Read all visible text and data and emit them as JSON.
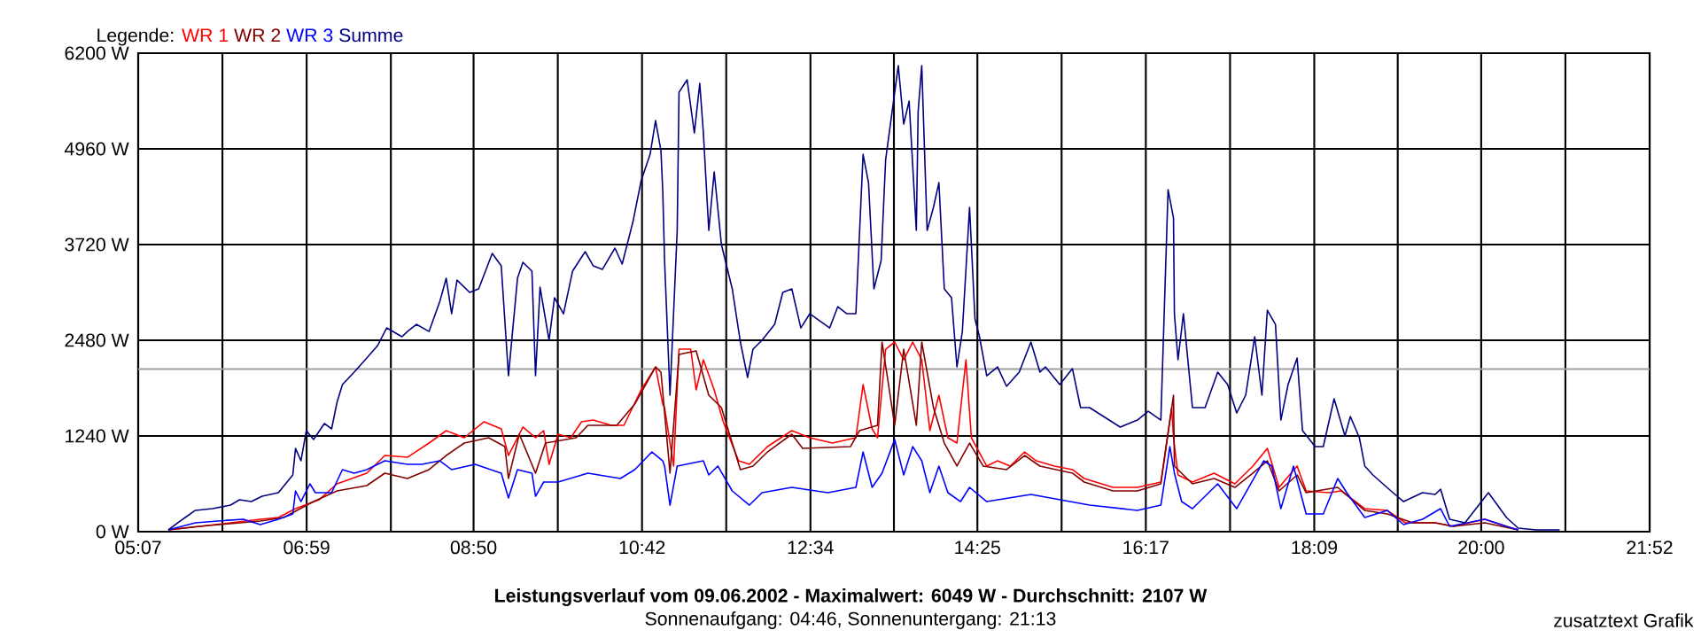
{
  "chart_data": {
    "type": "line",
    "title": "Leistungsverlauf vom 09.06.2002 - Maximalwert: 6049 W - Durchschnitt: 2107 W",
    "subtitle": "Sonnenaufgang: 04:46, Sonnenuntergang: 21:13",
    "annotations": [
      "zusatztext Grafik"
    ],
    "legend_title": "Legende:",
    "legend": "top left",
    "grid": true,
    "xlim": [
      5.1167,
      21.8667
    ],
    "ylim": [
      0,
      6200
    ],
    "xticks": [
      {
        "value": 5.1167,
        "label": "05:07"
      },
      {
        "value": 6.05,
        "label": null
      },
      {
        "value": 6.9833,
        "label": "06:59"
      },
      {
        "value": 7.9167,
        "label": null
      },
      {
        "value": 8.8333,
        "label": "08:50"
      },
      {
        "value": 9.7667,
        "label": null
      },
      {
        "value": 10.7,
        "label": "10:42"
      },
      {
        "value": 11.6333,
        "label": null
      },
      {
        "value": 12.5667,
        "label": "12:34"
      },
      {
        "value": 13.4917,
        "label": null
      },
      {
        "value": 14.4167,
        "label": "14:25"
      },
      {
        "value": 15.35,
        "label": null
      },
      {
        "value": 16.2833,
        "label": "16:17"
      },
      {
        "value": 17.2167,
        "label": null
      },
      {
        "value": 18.15,
        "label": "18:09"
      },
      {
        "value": 19.075,
        "label": null
      },
      {
        "value": 20.0,
        "label": "20:00"
      },
      {
        "value": 20.9333,
        "label": null
      },
      {
        "value": 21.8667,
        "label": "21:52"
      }
    ],
    "yticks": [
      {
        "value": 0,
        "label": "0 W"
      },
      {
        "value": 1240,
        "label": "1240 W"
      },
      {
        "value": 2480,
        "label": "2480 W"
      },
      {
        "value": 3720,
        "label": "3720 W"
      },
      {
        "value": 4960,
        "label": "4960 W"
      },
      {
        "value": 6200,
        "label": "6200 W"
      }
    ],
    "ref_lines": [
      {
        "axis": "y",
        "value": 2107,
        "color": "#a0a0a0"
      }
    ],
    "series": [
      {
        "name": "WR 1",
        "color": "#ff0000",
        "x": [
          5.45,
          5.8,
          6.14,
          6.47,
          6.67,
          6.86,
          7.12,
          7.32,
          7.65,
          7.85,
          8.1,
          8.34,
          8.53,
          8.73,
          8.95,
          9.14,
          9.22,
          9.38,
          9.52,
          9.61,
          9.67,
          9.77,
          9.91,
          10.03,
          10.16,
          10.36,
          10.5,
          10.69,
          10.85,
          10.93,
          10.95,
          11.05,
          11.11,
          11.24,
          11.3,
          11.38,
          11.5,
          11.6,
          11.77,
          11.89,
          12.09,
          12.36,
          12.56,
          12.81,
          13.07,
          13.15,
          13.25,
          13.31,
          13.4,
          13.5,
          13.6,
          13.7,
          13.8,
          13.89,
          13.99,
          14.09,
          14.19,
          14.29,
          14.35,
          14.52,
          14.64,
          14.78,
          14.94,
          15.07,
          15.27,
          15.47,
          15.6,
          15.92,
          16.19,
          16.45,
          16.57,
          16.59,
          16.64,
          16.8,
          17.04,
          17.27,
          17.47,
          17.63,
          17.76,
          17.96,
          18.06,
          18.31,
          18.45,
          18.71,
          18.96,
          19.16,
          19.49,
          19.69,
          20.04,
          20.28,
          20.41
        ],
        "values": [
          23,
          69,
          115,
          161,
          184,
          298,
          413,
          620,
          758,
          987,
          964,
          1148,
          1309,
          1217,
          1424,
          1332,
          987,
          1355,
          1217,
          1309,
          872,
          1263,
          1217,
          1424,
          1446,
          1378,
          1378,
          1837,
          2135,
          1653,
          1607,
          850,
          2365,
          2365,
          1837,
          2227,
          1837,
          1424,
          918,
          872,
          1102,
          1309,
          1217,
          1148,
          1217,
          1906,
          1332,
          1217,
          2365,
          2457,
          2227,
          2457,
          2227,
          1309,
          1768,
          1217,
          1148,
          2227,
          1217,
          850,
          918,
          850,
          1033,
          918,
          850,
          804,
          689,
          574,
          574,
          643,
          1607,
          1217,
          735,
          643,
          758,
          620,
          850,
          1079,
          574,
          850,
          528,
          505,
          528,
          298,
          275,
          115,
          115,
          69,
          161,
          69,
          23
        ]
      },
      {
        "name": "WR 2",
        "color": "#800000",
        "x": [
          5.45,
          5.8,
          6.47,
          6.73,
          7.06,
          7.32,
          7.65,
          7.85,
          8.1,
          8.34,
          8.53,
          8.73,
          9.0,
          9.18,
          9.22,
          9.34,
          9.52,
          9.63,
          9.97,
          10.1,
          10.42,
          10.62,
          10.85,
          10.91,
          11.01,
          11.11,
          11.3,
          11.44,
          11.58,
          11.79,
          11.93,
          12.09,
          12.36,
          12.48,
          13.01,
          13.11,
          13.31,
          13.36,
          13.5,
          13.6,
          13.74,
          13.8,
          13.93,
          14.05,
          14.19,
          14.33,
          14.48,
          14.74,
          14.94,
          15.11,
          15.47,
          15.6,
          15.92,
          16.19,
          16.45,
          16.59,
          16.6,
          16.8,
          17.04,
          17.27,
          17.47,
          17.63,
          17.76,
          17.96,
          18.06,
          18.41,
          18.71,
          18.96,
          19.24,
          19.49,
          19.69,
          20.04,
          20.41
        ],
        "values": [
          23,
          69,
          138,
          184,
          390,
          528,
          597,
          758,
          689,
          804,
          987,
          1148,
          1217,
          1102,
          689,
          1263,
          758,
          1148,
          1217,
          1378,
          1378,
          1653,
          2135,
          2066,
          758,
          2296,
          2342,
          1768,
          1607,
          804,
          850,
          1033,
          1263,
          1079,
          1102,
          1309,
          1378,
          2457,
          1378,
          2365,
          1378,
          2457,
          1607,
          1148,
          850,
          1148,
          850,
          804,
          987,
          850,
          758,
          643,
          528,
          528,
          620,
          1768,
          850,
          620,
          689,
          574,
          758,
          918,
          528,
          735,
          505,
          574,
          275,
          230,
          115,
          115,
          69,
          115,
          23
        ]
      },
      {
        "name": "WR 3",
        "color": "#0000ff",
        "x": [
          5.45,
          5.75,
          6.0,
          6.28,
          6.47,
          6.67,
          6.83,
          6.86,
          6.92,
          7.02,
          7.08,
          7.26,
          7.38,
          7.51,
          7.65,
          7.85,
          8.1,
          8.26,
          8.46,
          8.59,
          8.85,
          9.14,
          9.22,
          9.32,
          9.48,
          9.52,
          9.61,
          9.77,
          10.1,
          10.46,
          10.62,
          10.81,
          10.93,
          10.95,
          11.01,
          11.09,
          11.38,
          11.44,
          11.54,
          11.7,
          11.89,
          12.03,
          12.36,
          12.76,
          13.07,
          13.15,
          13.25,
          13.36,
          13.5,
          13.6,
          13.7,
          13.8,
          13.89,
          13.99,
          14.09,
          14.23,
          14.33,
          14.52,
          15.01,
          15.66,
          16.19,
          16.45,
          16.55,
          16.6,
          16.68,
          16.8,
          17.08,
          17.29,
          17.59,
          17.68,
          17.78,
          17.92,
          18.06,
          18.25,
          18.41,
          18.51,
          18.71,
          18.96,
          19.14,
          19.35,
          19.55,
          19.65,
          20.04,
          20.28,
          20.41
        ],
        "values": [
          23,
          115,
          138,
          161,
          92,
          161,
          230,
          528,
          390,
          620,
          505,
          505,
          804,
          758,
          804,
          918,
          872,
          872,
          918,
          804,
          872,
          758,
          436,
          804,
          758,
          459,
          643,
          643,
          758,
          689,
          804,
          1033,
          918,
          850,
          344,
          850,
          918,
          735,
          850,
          528,
          344,
          505,
          574,
          505,
          574,
          1033,
          574,
          758,
          1194,
          735,
          1102,
          918,
          505,
          850,
          505,
          390,
          574,
          390,
          482,
          344,
          276,
          344,
          1102,
          758,
          390,
          298,
          620,
          298,
          918,
          850,
          298,
          850,
          230,
          230,
          689,
          505,
          184,
          275,
          92,
          161,
          298,
          69,
          161,
          69,
          23
        ]
      },
      {
        "name": "Summe",
        "color": "#000080",
        "x": [
          5.45,
          5.61,
          5.75,
          5.94,
          6.14,
          6.24,
          6.37,
          6.49,
          6.67,
          6.83,
          6.86,
          6.92,
          6.98,
          7.06,
          7.18,
          7.26,
          7.32,
          7.38,
          7.51,
          7.65,
          7.77,
          7.87,
          8.04,
          8.1,
          8.2,
          8.34,
          8.46,
          8.53,
          8.59,
          8.65,
          8.79,
          8.89,
          9.04,
          9.14,
          9.22,
          9.32,
          9.38,
          9.48,
          9.52,
          9.57,
          9.67,
          9.73,
          9.83,
          9.93,
          10.07,
          10.16,
          10.26,
          10.4,
          10.48,
          10.6,
          10.69,
          10.79,
          10.85,
          10.91,
          10.93,
          10.95,
          11.01,
          11.09,
          11.11,
          11.2,
          11.28,
          11.34,
          11.38,
          11.44,
          11.5,
          11.58,
          11.7,
          11.79,
          11.87,
          11.93,
          12.03,
          12.17,
          12.26,
          12.36,
          12.46,
          12.56,
          12.78,
          12.87,
          12.97,
          13.07,
          13.15,
          13.21,
          13.27,
          13.35,
          13.4,
          13.54,
          13.6,
          13.66,
          13.74,
          13.76,
          13.8,
          13.86,
          13.93,
          13.99,
          14.05,
          14.13,
          14.19,
          14.25,
          14.33,
          14.39,
          14.44,
          14.52,
          14.64,
          14.74,
          14.88,
          15.01,
          15.11,
          15.17,
          15.33,
          15.47,
          15.56,
          15.66,
          16.0,
          16.19,
          16.31,
          16.45,
          16.53,
          16.59,
          16.6,
          16.64,
          16.7,
          16.8,
          16.94,
          17.08,
          17.19,
          17.29,
          17.39,
          17.49,
          17.57,
          17.63,
          17.72,
          17.78,
          17.86,
          17.96,
          18.02,
          18.16,
          18.25,
          18.37,
          18.49,
          18.55,
          18.65,
          18.71,
          18.8,
          19.0,
          19.14,
          19.35,
          19.49,
          19.55,
          19.65,
          19.82,
          20.08,
          20.28,
          20.41,
          20.61,
          20.87
        ],
        "values": [
          23,
          161,
          276,
          298,
          344,
          413,
          390,
          459,
          505,
          735,
          1079,
          918,
          1309,
          1194,
          1401,
          1332,
          1676,
          1906,
          2066,
          2250,
          2411,
          2640,
          2526,
          2594,
          2686,
          2594,
          2985,
          3283,
          2824,
          3260,
          3100,
          3146,
          3605,
          3444,
          2020,
          3283,
          3490,
          3375,
          2020,
          3168,
          2480,
          3031,
          2824,
          3375,
          3628,
          3444,
          3398,
          3674,
          3467,
          4018,
          4546,
          4890,
          5327,
          4936,
          4408,
          3513,
          1768,
          3903,
          5694,
          5855,
          5166,
          5809,
          5166,
          3903,
          4661,
          3720,
          3146,
          2457,
          1998,
          2365,
          2480,
          2686,
          3100,
          3146,
          2640,
          2824,
          2640,
          2916,
          2824,
          2824,
          4890,
          4523,
          3146,
          3513,
          4822,
          6038,
          5281,
          5579,
          3903,
          5442,
          6038,
          3903,
          4202,
          4523,
          3146,
          3031,
          2135,
          2594,
          4202,
          2755,
          2526,
          2020,
          2135,
          1883,
          2066,
          2457,
          2066,
          2135,
          1906,
          2112,
          1607,
          1607,
          1355,
          1446,
          1561,
          1446,
          4431,
          4064,
          2824,
          2227,
          2824,
          1607,
          1607,
          2066,
          1906,
          1538,
          1768,
          2526,
          1768,
          2870,
          2686,
          1446,
          1906,
          2250,
          1309,
          1102,
          1102,
          1722,
          1240,
          1492,
          1217,
          850,
          735,
          528,
          390,
          505,
          482,
          551,
          161,
          115,
          505,
          184,
          46,
          23,
          23
        ]
      }
    ]
  }
}
